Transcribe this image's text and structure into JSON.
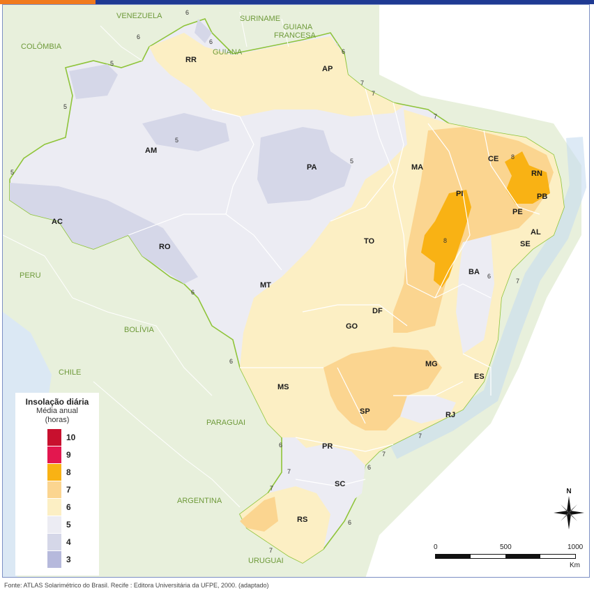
{
  "legend": {
    "title": "Insolação diária",
    "subtitle_line1": "Média anual",
    "subtitle_line2": "(horas)",
    "items": [
      {
        "label": "10",
        "color": "#c8102e"
      },
      {
        "label": "9",
        "color": "#e3174f"
      },
      {
        "label": "8",
        "color": "#f9b214"
      },
      {
        "label": "7",
        "color": "#fbd590"
      },
      {
        "label": "6",
        "color": "#fcefc4"
      },
      {
        "label": "5",
        "color": "#ececf3"
      },
      {
        "label": "4",
        "color": "#d5d7e8"
      },
      {
        "label": "3",
        "color": "#b6b9dc"
      }
    ]
  },
  "states": [
    "RR",
    "AP",
    "AM",
    "PA",
    "MA",
    "CE",
    "RN",
    "PI",
    "PB",
    "PE",
    "AL",
    "SE",
    "AC",
    "RO",
    "TO",
    "BA",
    "MT",
    "DF",
    "GO",
    "MG",
    "ES",
    "MS",
    "SP",
    "RJ",
    "PR",
    "SC",
    "RS"
  ],
  "countries": [
    "VENEZUELA",
    "SURINAME",
    "GUIANA",
    "FRANCESA",
    "COLÔMBIA",
    "GUIANA",
    "PERU",
    "BOLÍVIA",
    "CHILE",
    "PARAGUAI",
    "ARGENTINA",
    "URUGUAI"
  ],
  "isolines": [
    "6",
    "6",
    "6",
    "6",
    "5",
    "5",
    "5",
    "5",
    "5",
    "6",
    "7",
    "7",
    "7",
    "8",
    "8",
    "6",
    "7",
    "7",
    "6",
    "6",
    "7",
    "6",
    "7",
    "6",
    "7",
    "7"
  ],
  "scale": {
    "ticks": [
      "0",
      "500",
      "1000"
    ],
    "unit": "Km"
  },
  "compass": {
    "north": "N"
  },
  "source": "Fonte: ATLAS Solarimétrico do Brasil. Recife : Editora Universitária da UFPE, 2000. (adaptado)"
}
